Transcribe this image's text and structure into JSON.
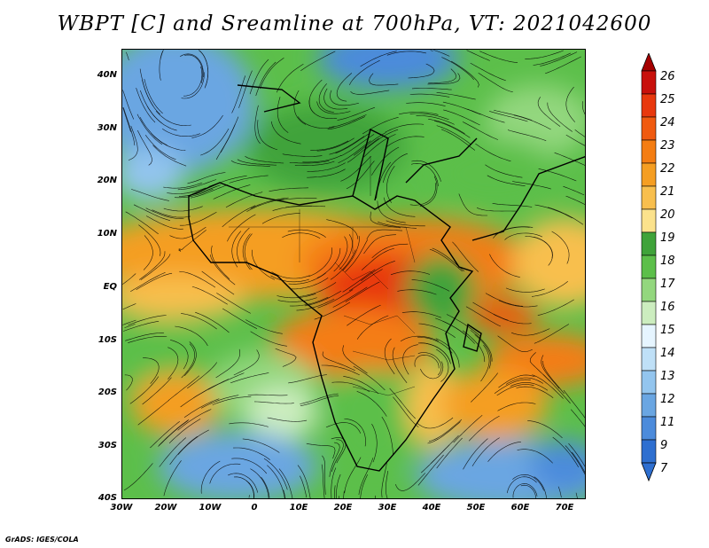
{
  "title": "WBPT [C] and Sreamline at 700hPa, VT: 2021042600",
  "credit": "GrADS: IGES/COLA",
  "map": {
    "lon_range": [
      -30,
      75
    ],
    "lat_range": [
      -40,
      45
    ],
    "lat_labels": [
      "40N",
      "30N",
      "20N",
      "10N",
      "EQ",
      "10S",
      "20S",
      "30S",
      "40S"
    ],
    "lat_values": [
      40,
      30,
      20,
      10,
      0,
      -10,
      -20,
      -30,
      -40
    ],
    "lon_labels": [
      "30W",
      "20W",
      "10W",
      "0",
      "10E",
      "20E",
      "30E",
      "40E",
      "50E",
      "60E",
      "70E"
    ],
    "lon_values": [
      -30,
      -20,
      -10,
      0,
      10,
      20,
      30,
      40,
      50,
      60,
      70
    ]
  },
  "colorbar": {
    "labels": [
      "26",
      "25",
      "24",
      "23",
      "22",
      "21",
      "20",
      "19",
      "18",
      "17",
      "16",
      "15",
      "14",
      "13",
      "12",
      "11",
      "9",
      "7"
    ],
    "colors": [
      "#a50000",
      "#c8100b",
      "#e8380d",
      "#f05a10",
      "#f47d12",
      "#f59e22",
      "#f8bf4e",
      "#fbe28c",
      "#3fa33a",
      "#5cbf4a",
      "#93d77e",
      "#ccedbf",
      "#e6f5ff",
      "#bfe0f7",
      "#93c5ee",
      "#6aa6e2",
      "#4c8bdb",
      "#2e6fd0"
    ]
  }
}
